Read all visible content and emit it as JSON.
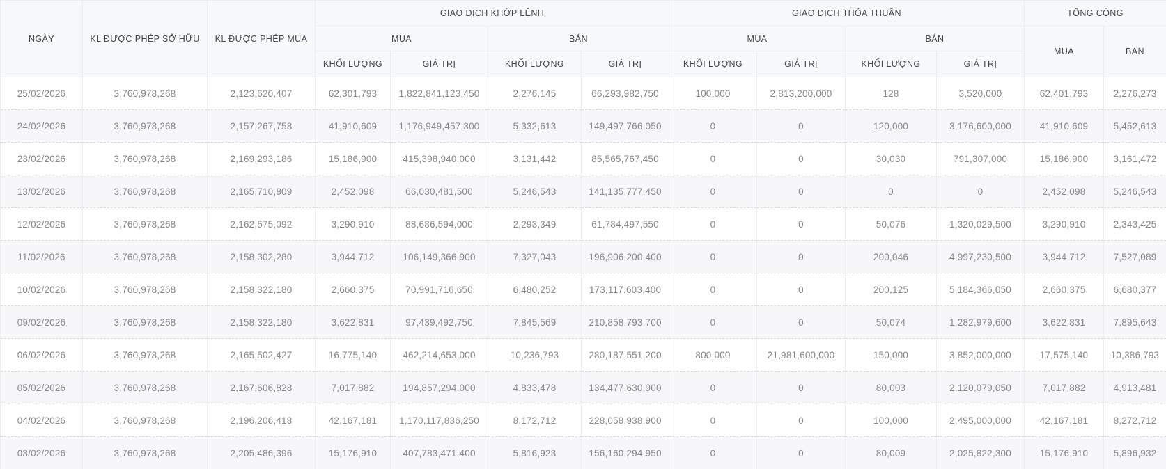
{
  "colors": {
    "header_bg": "#f7f8f9",
    "stripe_bg": "#f7f7f9",
    "v_border": "#ededf0",
    "h_border": "#d9d9de",
    "header_text": "#47474e",
    "data_text": "#87878d"
  },
  "table": {
    "header": {
      "col_date": "NGÀY",
      "col_allowed_own": "KL ĐƯỢC PHÉP SỞ HỮU",
      "col_allowed_buy": "KL ĐƯỢC PHÉP MUA",
      "group_order_matching": "GIAO DỊCH KHỚP LỆNH",
      "group_negotiated": "GIAO DỊCH THỎA THUẬN",
      "group_total": "TỔNG CỘNG",
      "sub_buy": "MUA",
      "sub_sell": "BÁN",
      "leaf_volume": "KHỐI LƯỢNG",
      "leaf_value": "GIÁ TRỊ"
    },
    "field_order": [
      "date",
      "allowed_own",
      "allowed_buy",
      "match_buy_vol",
      "match_buy_val",
      "match_sell_vol",
      "match_sell_val",
      "deal_buy_vol",
      "deal_buy_val",
      "deal_sell_vol",
      "deal_sell_val",
      "total_buy",
      "total_sell"
    ],
    "rows": [
      {
        "date": "25/02/2026",
        "allowed_own": "3,760,978,268",
        "allowed_buy": "2,123,620,407",
        "match_buy_vol": "62,301,793",
        "match_buy_val": "1,822,841,123,450",
        "match_sell_vol": "2,276,145",
        "match_sell_val": "66,293,982,750",
        "deal_buy_vol": "100,000",
        "deal_buy_val": "2,813,200,000",
        "deal_sell_vol": "128",
        "deal_sell_val": "3,520,000",
        "total_buy": "62,401,793",
        "total_sell": "2,276,273"
      },
      {
        "date": "24/02/2026",
        "allowed_own": "3,760,978,268",
        "allowed_buy": "2,157,267,758",
        "match_buy_vol": "41,910,609",
        "match_buy_val": "1,176,949,457,300",
        "match_sell_vol": "5,332,613",
        "match_sell_val": "149,497,766,050",
        "deal_buy_vol": "0",
        "deal_buy_val": "0",
        "deal_sell_vol": "120,000",
        "deal_sell_val": "3,176,600,000",
        "total_buy": "41,910,609",
        "total_sell": "5,452,613"
      },
      {
        "date": "23/02/2026",
        "allowed_own": "3,760,978,268",
        "allowed_buy": "2,169,293,186",
        "match_buy_vol": "15,186,900",
        "match_buy_val": "415,398,940,000",
        "match_sell_vol": "3,131,442",
        "match_sell_val": "85,565,767,450",
        "deal_buy_vol": "0",
        "deal_buy_val": "0",
        "deal_sell_vol": "30,030",
        "deal_sell_val": "791,307,000",
        "total_buy": "15,186,900",
        "total_sell": "3,161,472"
      },
      {
        "date": "13/02/2026",
        "allowed_own": "3,760,978,268",
        "allowed_buy": "2,165,710,809",
        "match_buy_vol": "2,452,098",
        "match_buy_val": "66,030,481,500",
        "match_sell_vol": "5,246,543",
        "match_sell_val": "141,135,777,450",
        "deal_buy_vol": "0",
        "deal_buy_val": "0",
        "deal_sell_vol": "0",
        "deal_sell_val": "0",
        "total_buy": "2,452,098",
        "total_sell": "5,246,543"
      },
      {
        "date": "12/02/2026",
        "allowed_own": "3,760,978,268",
        "allowed_buy": "2,162,575,092",
        "match_buy_vol": "3,290,910",
        "match_buy_val": "88,686,594,000",
        "match_sell_vol": "2,293,349",
        "match_sell_val": "61,784,497,550",
        "deal_buy_vol": "0",
        "deal_buy_val": "0",
        "deal_sell_vol": "50,076",
        "deal_sell_val": "1,320,029,500",
        "total_buy": "3,290,910",
        "total_sell": "2,343,425"
      },
      {
        "date": "11/02/2026",
        "allowed_own": "3,760,978,268",
        "allowed_buy": "2,158,302,280",
        "match_buy_vol": "3,944,712",
        "match_buy_val": "106,149,366,900",
        "match_sell_vol": "7,327,043",
        "match_sell_val": "196,906,200,400",
        "deal_buy_vol": "0",
        "deal_buy_val": "0",
        "deal_sell_vol": "200,046",
        "deal_sell_val": "4,997,230,500",
        "total_buy": "3,944,712",
        "total_sell": "7,527,089"
      },
      {
        "date": "10/02/2026",
        "allowed_own": "3,760,978,268",
        "allowed_buy": "2,158,322,180",
        "match_buy_vol": "2,660,375",
        "match_buy_val": "70,991,716,650",
        "match_sell_vol": "6,480,252",
        "match_sell_val": "173,117,603,400",
        "deal_buy_vol": "0",
        "deal_buy_val": "0",
        "deal_sell_vol": "200,125",
        "deal_sell_val": "5,184,366,050",
        "total_buy": "2,660,375",
        "total_sell": "6,680,377"
      },
      {
        "date": "09/02/2026",
        "allowed_own": "3,760,978,268",
        "allowed_buy": "2,158,322,180",
        "match_buy_vol": "3,622,831",
        "match_buy_val": "97,439,492,750",
        "match_sell_vol": "7,845,569",
        "match_sell_val": "210,858,793,700",
        "deal_buy_vol": "0",
        "deal_buy_val": "0",
        "deal_sell_vol": "50,074",
        "deal_sell_val": "1,282,979,600",
        "total_buy": "3,622,831",
        "total_sell": "7,895,643"
      },
      {
        "date": "06/02/2026",
        "allowed_own": "3,760,978,268",
        "allowed_buy": "2,165,502,427",
        "match_buy_vol": "16,775,140",
        "match_buy_val": "462,214,653,000",
        "match_sell_vol": "10,236,793",
        "match_sell_val": "280,187,551,200",
        "deal_buy_vol": "800,000",
        "deal_buy_val": "21,981,600,000",
        "deal_sell_vol": "150,000",
        "deal_sell_val": "3,852,000,000",
        "total_buy": "17,575,140",
        "total_sell": "10,386,793"
      },
      {
        "date": "05/02/2026",
        "allowed_own": "3,760,978,268",
        "allowed_buy": "2,167,606,828",
        "match_buy_vol": "7,017,882",
        "match_buy_val": "194,857,294,000",
        "match_sell_vol": "4,833,478",
        "match_sell_val": "134,477,630,900",
        "deal_buy_vol": "0",
        "deal_buy_val": "0",
        "deal_sell_vol": "80,003",
        "deal_sell_val": "2,120,079,050",
        "total_buy": "7,017,882",
        "total_sell": "4,913,481"
      },
      {
        "date": "04/02/2026",
        "allowed_own": "3,760,978,268",
        "allowed_buy": "2,196,206,418",
        "match_buy_vol": "42,167,181",
        "match_buy_val": "1,170,117,836,250",
        "match_sell_vol": "8,172,712",
        "match_sell_val": "228,058,938,900",
        "deal_buy_vol": "0",
        "deal_buy_val": "0",
        "deal_sell_vol": "100,000",
        "deal_sell_val": "2,495,000,000",
        "total_buy": "42,167,181",
        "total_sell": "8,272,712"
      },
      {
        "date": "03/02/2026",
        "allowed_own": "3,760,978,268",
        "allowed_buy": "2,205,486,396",
        "match_buy_vol": "15,176,910",
        "match_buy_val": "407,783,471,400",
        "match_sell_vol": "5,816,923",
        "match_sell_val": "156,160,294,950",
        "deal_buy_vol": "0",
        "deal_buy_val": "0",
        "deal_sell_vol": "80,009",
        "deal_sell_val": "2,025,822,300",
        "total_buy": "15,176,910",
        "total_sell": "5,896,932"
      }
    ]
  }
}
